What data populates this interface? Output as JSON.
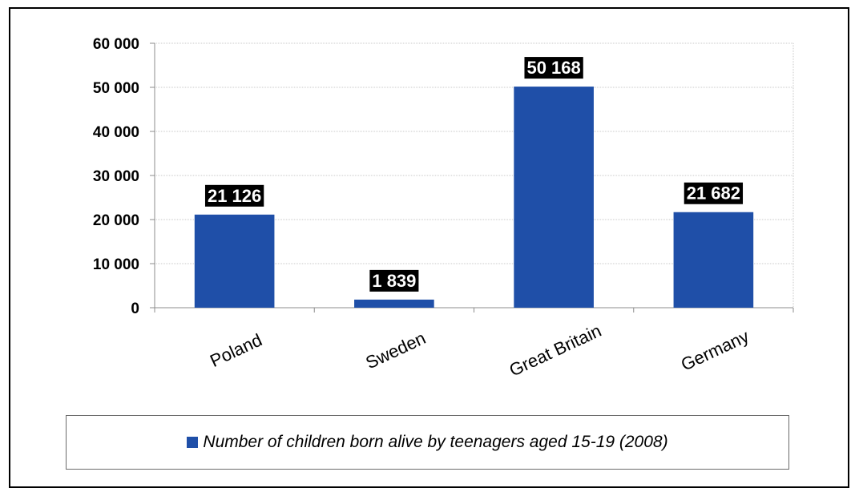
{
  "chart_data": {
    "type": "bar",
    "categories": [
      "Poland",
      "Sweden",
      "Great Britain",
      "Germany"
    ],
    "series": [
      {
        "name": "Number of children born alive by teenagers aged 15-19 (2008)",
        "values": [
          21126,
          1839,
          50168,
          21682
        ],
        "value_labels": [
          "21 126",
          "1 839",
          "50 168",
          "21 682"
        ],
        "color": "#1f4fa8"
      }
    ],
    "ylim": [
      0,
      60000
    ],
    "yticks": [
      0,
      10000,
      20000,
      30000,
      40000,
      50000,
      60000
    ],
    "ytick_labels": [
      "0",
      "10 000",
      "20 000",
      "30 000",
      "40 000",
      "50 000",
      "60 000"
    ],
    "grid": true,
    "legend": {
      "position": "bottom",
      "label": "Number of children born alive by teenagers aged 15-19 (2008)"
    },
    "title": "",
    "xlabel": "",
    "ylabel": ""
  }
}
